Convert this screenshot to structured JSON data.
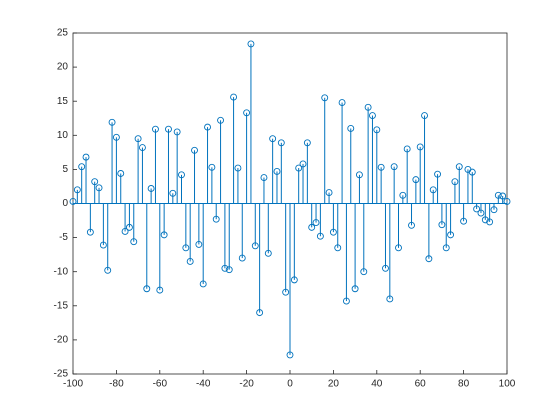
{
  "chart_data": {
    "type": "stem",
    "color": "#0072bd",
    "x": [
      -100,
      -98,
      -96,
      -94,
      -92,
      -90,
      -88,
      -86,
      -84,
      -82,
      -80,
      -78,
      -76,
      -74,
      -72,
      -70,
      -68,
      -66,
      -64,
      -62,
      -60,
      -58,
      -56,
      -54,
      -52,
      -50,
      -48,
      -46,
      -44,
      -42,
      -40,
      -38,
      -36,
      -34,
      -32,
      -30,
      -28,
      -26,
      -24,
      -22,
      -20,
      -18,
      -16,
      -14,
      -12,
      -10,
      -8,
      -6,
      -4,
      -2,
      0,
      2,
      4,
      6,
      8,
      10,
      12,
      14,
      16,
      18,
      20,
      22,
      24,
      26,
      28,
      30,
      32,
      34,
      36,
      38,
      40,
      42,
      44,
      46,
      48,
      50,
      52,
      54,
      56,
      58,
      60,
      62,
      64,
      66,
      68,
      70,
      72,
      74,
      76,
      78,
      80,
      82,
      84,
      86,
      88,
      90,
      92,
      94,
      96,
      98,
      100
    ],
    "values": [
      0.3,
      2,
      5.4,
      6.8,
      -4.2,
      3.2,
      2.3,
      -6.1,
      -9.8,
      11.9,
      9.7,
      4.4,
      -4.1,
      -3.5,
      -5.6,
      9.5,
      8.2,
      -12.5,
      2.2,
      10.9,
      -12.7,
      -4.6,
      10.9,
      1.5,
      10.5,
      4.2,
      -6.5,
      -8.5,
      7.8,
      -6,
      -11.8,
      11.2,
      5.3,
      -2.3,
      12.2,
      -9.5,
      -9.7,
      15.6,
      5.2,
      -8,
      13.3,
      23.4,
      -6.2,
      -16,
      3.8,
      -7.3,
      9.5,
      4.7,
      8.9,
      -13,
      -22.2,
      -11.2,
      5.2,
      5.8,
      8.9,
      -3.5,
      -2.8,
      -4.8,
      15.5,
      1.6,
      -4.2,
      -6.5,
      14.8,
      -14.3,
      11,
      -12.5,
      4.2,
      -10,
      14.1,
      12.9,
      10.8,
      5.3,
      -9.5,
      -14,
      5.4,
      -6.5,
      1.2,
      8,
      -3.2,
      3.5,
      8.3,
      12.9,
      -8.1,
      2,
      4.3,
      -3.1,
      -6.5,
      -4.6,
      3.2,
      5.4,
      -2.6,
      5,
      4.6,
      -0.8,
      -1.4,
      -2.4,
      -2.7,
      -0.9,
      1.2,
      1.1,
      0.3
    ],
    "xlim": [
      -100,
      100
    ],
    "ylim": [
      -25,
      25
    ],
    "xticks": [
      -100,
      -80,
      -60,
      -40,
      -20,
      0,
      20,
      40,
      60,
      80,
      100
    ],
    "yticks": [
      -25,
      -20,
      -15,
      -10,
      -5,
      0,
      5,
      10,
      15,
      20,
      25
    ]
  }
}
